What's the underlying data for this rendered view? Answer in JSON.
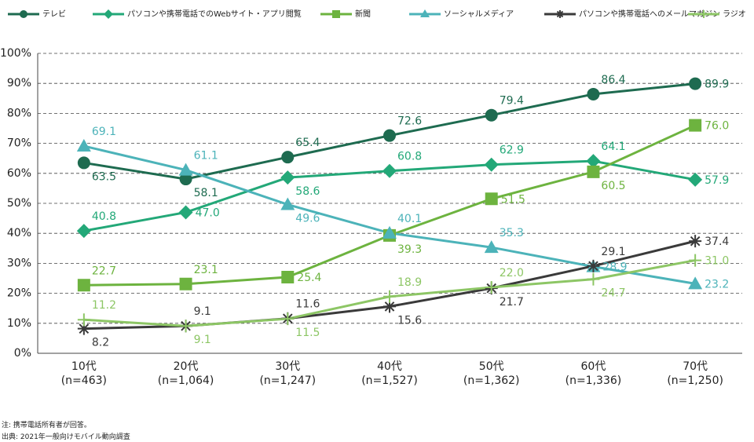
{
  "chart_data": {
    "type": "line",
    "categories": [
      "10代\n(n=463)",
      "20代\n(n=1,064)",
      "30代\n(n=1,247)",
      "40代\n(n=1,527)",
      "50代\n(n=1,362)",
      "60代\n(n=1,336)",
      "70代\n(n=1,250)"
    ],
    "series": [
      {
        "name": "テレビ",
        "color": "#1e6b50",
        "marker": "circle",
        "values": [
          63.5,
          58.1,
          65.4,
          72.6,
          79.4,
          86.4,
          89.9
        ],
        "value_labels": [
          "63.5",
          "58.1",
          "65.4",
          "72.6",
          "79.4",
          "86.4",
          "89.9"
        ]
      },
      {
        "name": "パソコンや携帯電話でのWebサイト・アプリ閲覧",
        "color": "#23a878",
        "marker": "diamond",
        "values": [
          40.8,
          47.0,
          58.6,
          60.8,
          62.9,
          64.1,
          57.9
        ],
        "value_labels": [
          "40.8",
          "47.0",
          "58.6",
          "60.8",
          "62.9",
          "64.1",
          "57.9"
        ]
      },
      {
        "name": "新聞",
        "color": "#6db33f",
        "marker": "square",
        "values": [
          22.7,
          23.1,
          25.4,
          39.3,
          51.5,
          60.5,
          76.0
        ],
        "value_labels": [
          "22.7",
          "23.1",
          "25.4",
          "39.3",
          "51.5",
          "60.5",
          "76.0"
        ]
      },
      {
        "name": "ソーシャルメディア",
        "color": "#4cb3b9",
        "marker": "triangle",
        "values": [
          69.1,
          61.1,
          49.6,
          40.1,
          35.3,
          28.9,
          23.2
        ],
        "value_labels": [
          "69.1",
          "61.1",
          "49.6",
          "40.1",
          "35.3",
          "28.9",
          "23.2"
        ]
      },
      {
        "name": "パソコンや携帯電話へのメールマガジン",
        "color": "#3a3a3a",
        "marker": "asterisk",
        "values": [
          8.2,
          9.1,
          11.6,
          15.6,
          21.7,
          29.1,
          37.4
        ],
        "value_labels": [
          "8.2",
          "9.1",
          "11.6",
          "15.6",
          "21.7",
          "29.1",
          "37.4"
        ]
      },
      {
        "name": "ラジオ",
        "color": "#8dc665",
        "marker": "plus",
        "values": [
          11.2,
          9.1,
          11.5,
          18.9,
          22.0,
          24.7,
          31.0
        ],
        "value_labels": [
          "11.2",
          "9.1",
          "11.5",
          "18.9",
          "22.0",
          "24.7",
          "31.0"
        ]
      }
    ],
    "ylim": [
      0,
      100
    ],
    "yticks": [
      {
        "value": 0,
        "label": "0%"
      },
      {
        "value": 10,
        "label": "10%"
      },
      {
        "value": 20,
        "label": "20%"
      },
      {
        "value": 30,
        "label": "30%"
      },
      {
        "value": 40,
        "label": "40%"
      },
      {
        "value": 50,
        "label": "50%"
      },
      {
        "value": 60,
        "label": "60%"
      },
      {
        "value": 70,
        "label": "70%"
      },
      {
        "value": 80,
        "label": "80%"
      },
      {
        "value": 90,
        "label": "90%"
      },
      {
        "value": 100,
        "label": "100%"
      }
    ],
    "grid": true,
    "legend": "top",
    "notes": [
      "注: 携帯電話所有者が回答。",
      "出典: 2021年一般向けモバイル動向調査"
    ]
  }
}
